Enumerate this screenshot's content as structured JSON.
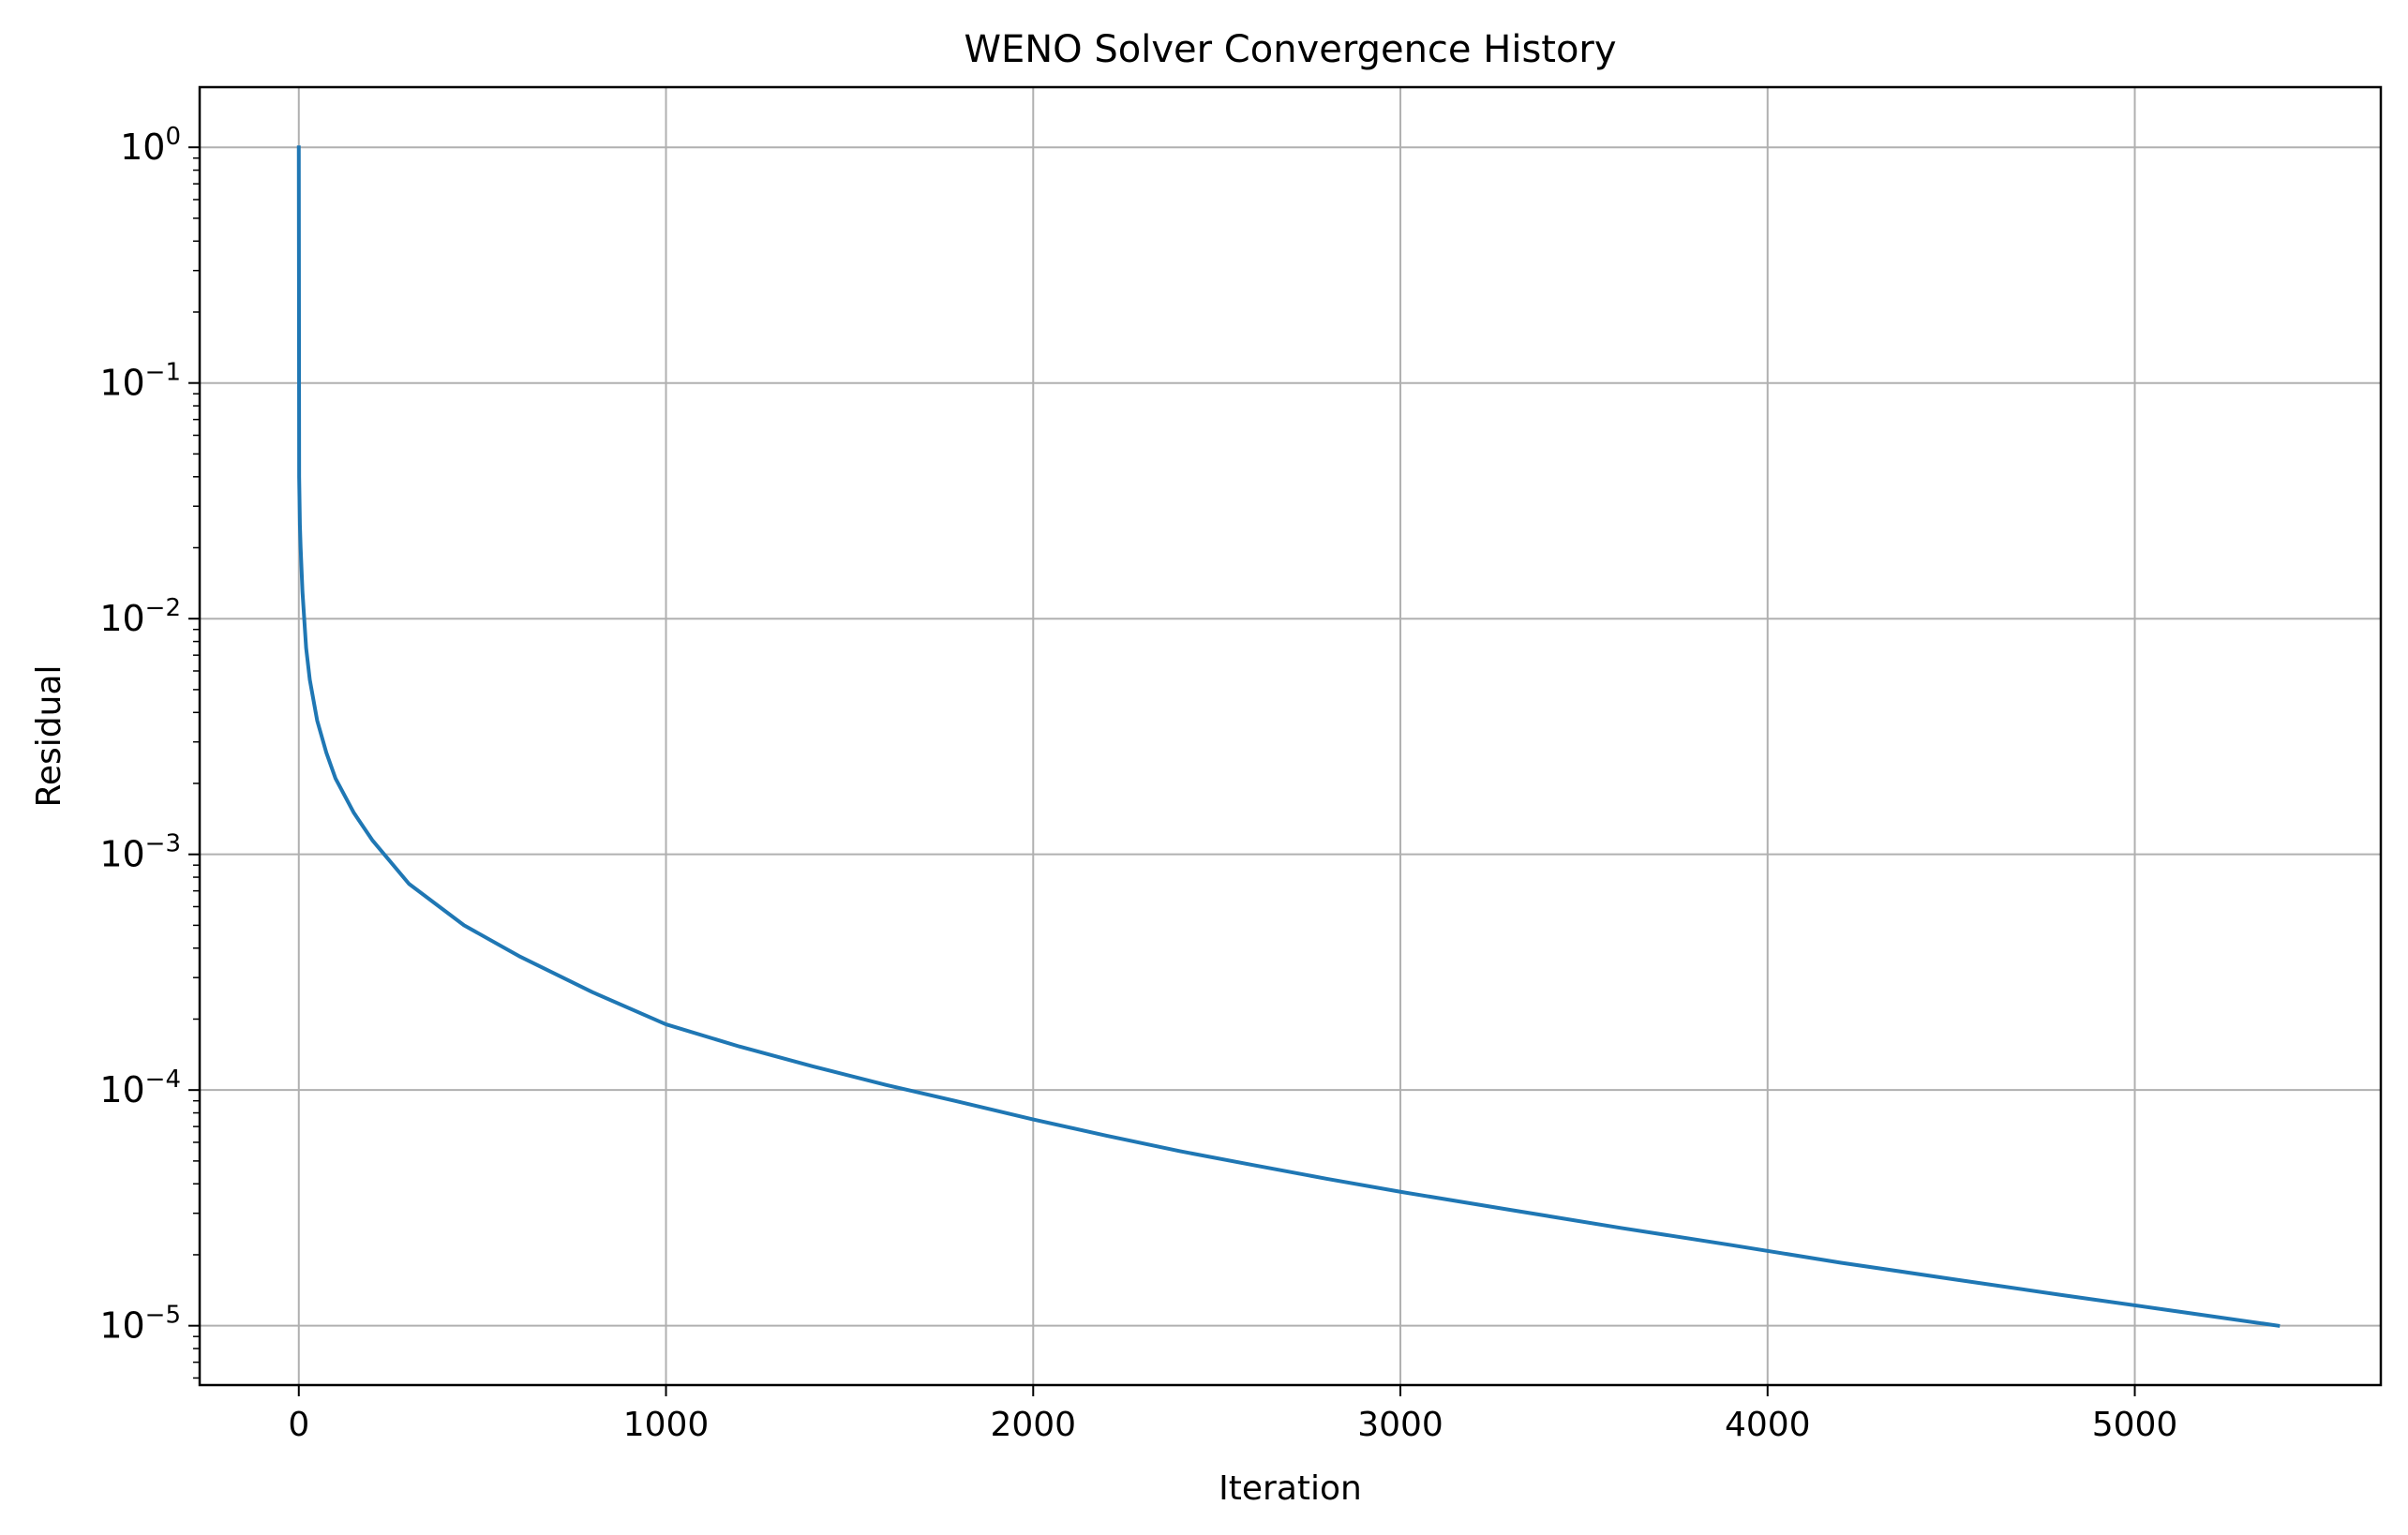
{
  "chart_data": {
    "type": "line",
    "title": "WENO Solver Convergence History",
    "xlabel": "Iteration",
    "ylabel": "Residual",
    "xscale": "linear",
    "yscale": "log",
    "xlim": [
      -270,
      5670
    ],
    "ylim": [
      5.6e-06,
      1.8
    ],
    "grid": true,
    "x_ticks": [
      0,
      1000,
      2000,
      3000,
      4000,
      5000
    ],
    "x_tick_labels": [
      "0",
      "1000",
      "2000",
      "3000",
      "4000",
      "5000"
    ],
    "y_ticks": [
      {
        "value": 1,
        "base": "10",
        "exp": "0"
      },
      {
        "value": 0.1,
        "base": "10",
        "exp": "−1"
      },
      {
        "value": 0.01,
        "base": "10",
        "exp": "−2"
      },
      {
        "value": 0.001,
        "base": "10",
        "exp": "−3"
      },
      {
        "value": 0.0001,
        "base": "10",
        "exp": "−4"
      },
      {
        "value": 1e-05,
        "base": "10",
        "exp": "−5"
      }
    ],
    "series": [
      {
        "color": "#1f77b4",
        "x": [
          0,
          1,
          3,
          5,
          10,
          20,
          30,
          50,
          75,
          100,
          150,
          200,
          300,
          450,
          600,
          800,
          1000,
          1200,
          1400,
          1600,
          1800,
          2000,
          2200,
          2400,
          2600,
          2800,
          3000,
          3300,
          3600,
          3900,
          4200,
          4500,
          4800,
          5100,
          5390
        ],
        "y": [
          1,
          0.04,
          0.025,
          0.02,
          0.013,
          0.0075,
          0.0055,
          0.0037,
          0.0027,
          0.0021,
          0.0015,
          0.00115,
          0.00075,
          0.0005,
          0.00037,
          0.00026,
          0.00019,
          0.000153,
          0.000126,
          0.000105,
          8.9e-05,
          7.5e-05,
          6.4e-05,
          5.5e-05,
          4.8e-05,
          4.2e-05,
          3.7e-05,
          3.1e-05,
          2.6e-05,
          2.2e-05,
          1.85e-05,
          1.58e-05,
          1.35e-05,
          1.16e-05,
          1e-05
        ]
      }
    ]
  }
}
